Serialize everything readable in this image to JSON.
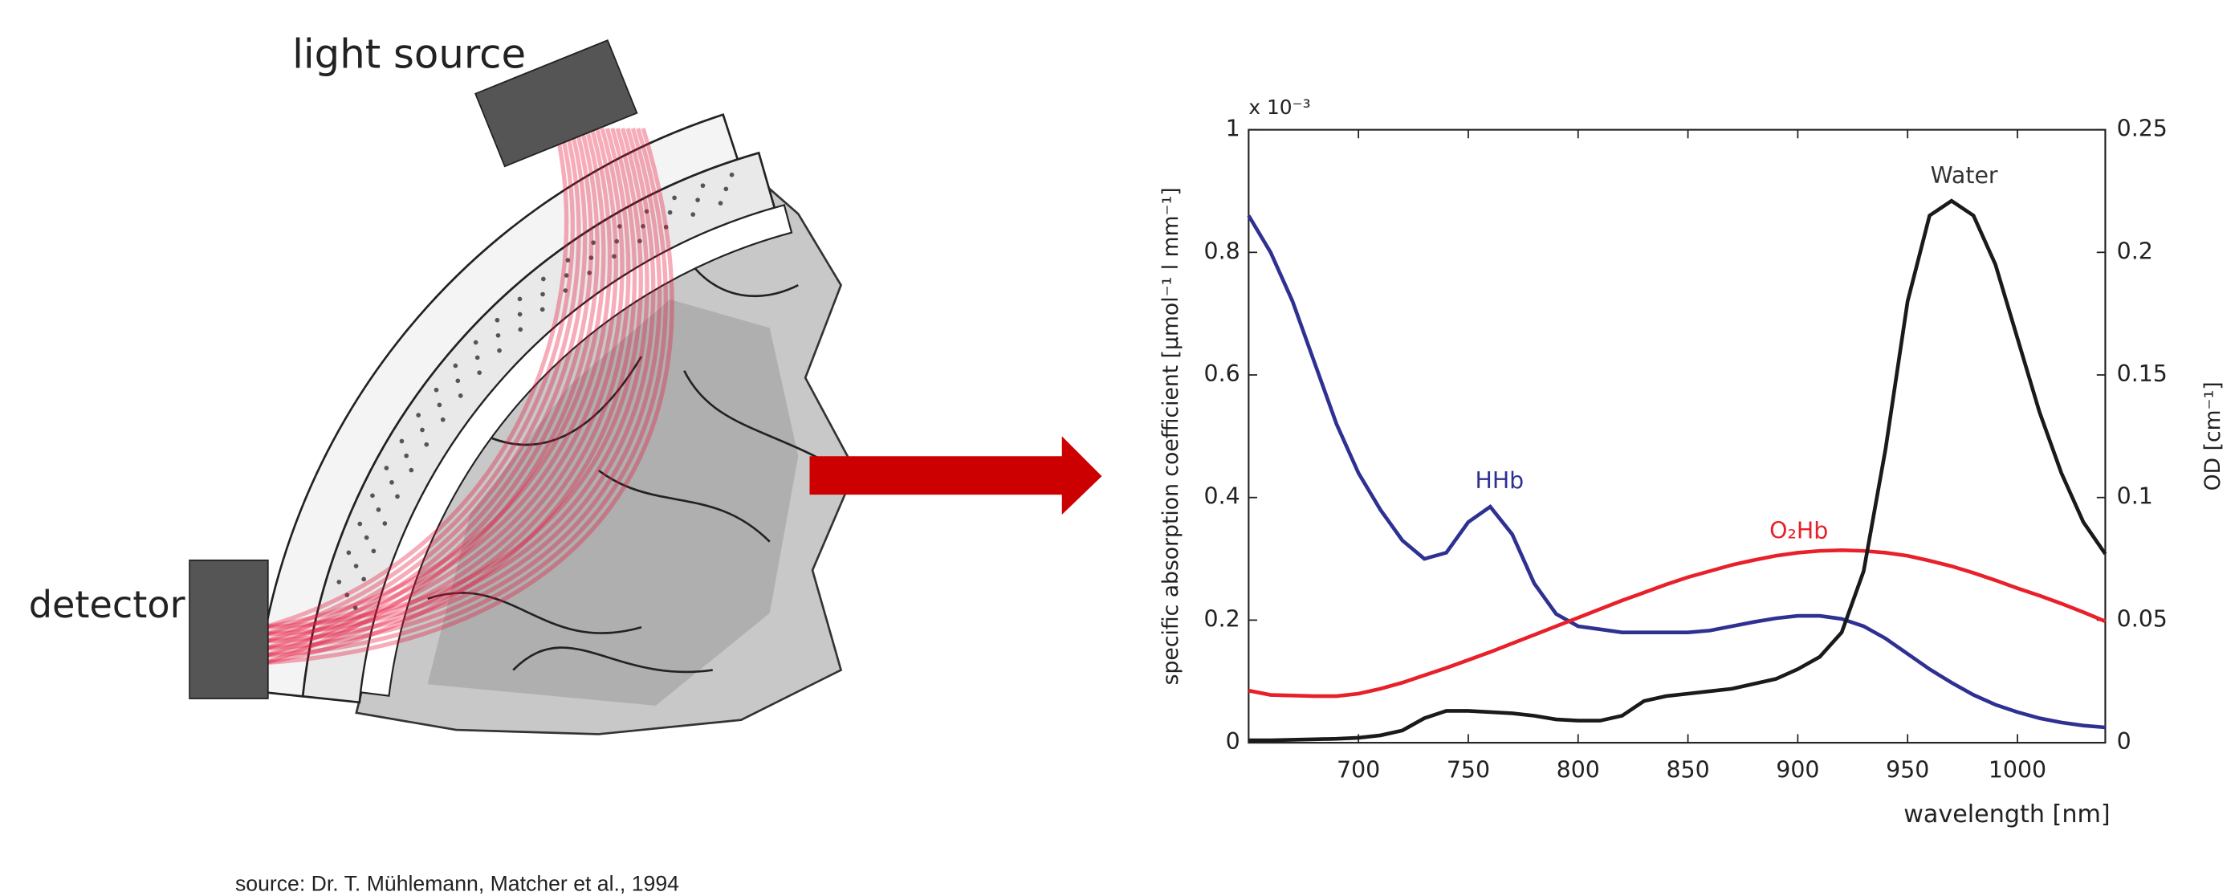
{
  "illustration": {
    "light_source_label": "light source",
    "detector_label": "detector"
  },
  "chart_data": {
    "type": "line",
    "x": [
      650,
      660,
      670,
      680,
      690,
      700,
      710,
      720,
      730,
      740,
      750,
      760,
      770,
      780,
      790,
      800,
      810,
      820,
      830,
      840,
      850,
      860,
      870,
      880,
      890,
      900,
      910,
      920,
      930,
      940,
      950,
      960,
      970,
      980,
      990,
      1000,
      1010,
      1020,
      1030,
      1040
    ],
    "series": [
      {
        "name": "HHb",
        "color": "#2e3192",
        "values": [
          0.86,
          0.8,
          0.72,
          0.62,
          0.52,
          0.44,
          0.38,
          0.33,
          0.3,
          0.31,
          0.36,
          0.385,
          0.34,
          0.26,
          0.21,
          0.19,
          0.185,
          0.18,
          0.18,
          0.18,
          0.18,
          0.183,
          0.19,
          0.197,
          0.203,
          0.207,
          0.207,
          0.202,
          0.19,
          0.17,
          0.145,
          0.12,
          0.098,
          0.078,
          0.062,
          0.05,
          0.04,
          0.033,
          0.028,
          0.025
        ]
      },
      {
        "name": "O₂Hb",
        "color": "#e8202a",
        "values": [
          0.085,
          0.078,
          0.077,
          0.076,
          0.076,
          0.08,
          0.088,
          0.098,
          0.11,
          0.122,
          0.135,
          0.148,
          0.162,
          0.176,
          0.19,
          0.204,
          0.218,
          0.232,
          0.245,
          0.258,
          0.27,
          0.28,
          0.29,
          0.298,
          0.305,
          0.31,
          0.313,
          0.314,
          0.313,
          0.31,
          0.305,
          0.297,
          0.288,
          0.277,
          0.265,
          0.252,
          0.24,
          0.227,
          0.213,
          0.198
        ]
      },
      {
        "name": "Water",
        "color": "#1a1a1a",
        "axis": "y2",
        "values": [
          0.001,
          0.001,
          0.0012,
          0.0014,
          0.0016,
          0.002,
          0.003,
          0.005,
          0.01,
          0.013,
          0.013,
          0.0125,
          0.012,
          0.011,
          0.0095,
          0.009,
          0.009,
          0.011,
          0.017,
          0.019,
          0.02,
          0.021,
          0.022,
          0.024,
          0.026,
          0.03,
          0.035,
          0.045,
          0.07,
          0.12,
          0.18,
          0.215,
          0.221,
          0.215,
          0.195,
          0.165,
          0.135,
          0.11,
          0.09,
          0.077
        ]
      }
    ],
    "xlim": [
      650,
      1040
    ],
    "xticks": [
      700,
      750,
      800,
      850,
      900,
      950,
      1000
    ],
    "ylim": [
      0,
      1
    ],
    "yticks": [
      0,
      0.2,
      0.4,
      0.6,
      0.8,
      1
    ],
    "y2lim": [
      0,
      0.25
    ],
    "y2ticks": [
      0,
      0.05,
      0.1,
      0.15,
      0.2,
      0.25
    ],
    "y_multiplier": "x 10⁻³",
    "xlabel": "wavelength [nm]",
    "ylabel": "specific absorption coefficient [µmol⁻¹ l mm⁻¹]",
    "y2label": "OD [cm⁻¹]"
  },
  "caption": "source: Dr. T. Mühlemann, Matcher et al., 1994"
}
